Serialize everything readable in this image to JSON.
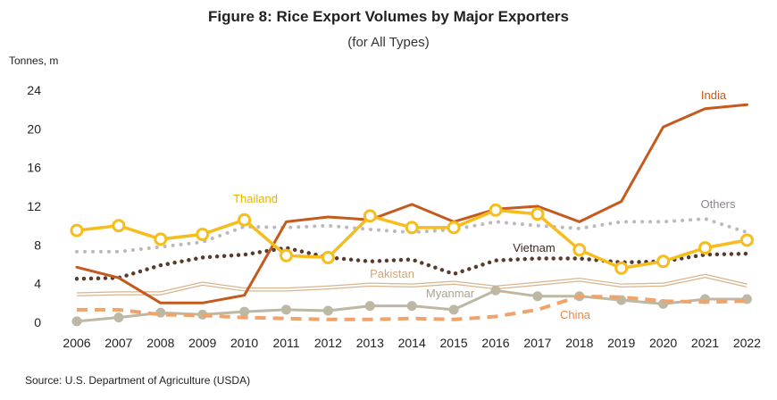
{
  "chart_data": {
    "type": "line",
    "title": "Figure 8: Rice Export Volumes by Major Exporters",
    "subtitle": "(for All Types)",
    "ylabel": "Tonnes, m",
    "source": "Source: U.S. Department of Agriculture (USDA)",
    "ylim": [
      0,
      24
    ],
    "yticks": [
      0,
      4,
      8,
      12,
      16,
      20,
      24
    ],
    "x": [
      "2006",
      "2007",
      "2008",
      "2009",
      "2010",
      "2011",
      "2012",
      "2013",
      "2014",
      "2015",
      "2016",
      "2017",
      "2018",
      "2019",
      "2020",
      "2021",
      "2022"
    ],
    "grid": false,
    "legend": "inline labels",
    "series": [
      {
        "key": "others",
        "name": "Others",
        "color": "#BFB7BE",
        "style": "dotted",
        "values": [
          7.3,
          7.3,
          7.8,
          8.3,
          9.9,
          9.8,
          10.0,
          9.6,
          9.3,
          9.6,
          10.4,
          10.0,
          9.7,
          10.4,
          10.4,
          10.7,
          9.3
        ]
      },
      {
        "key": "pakistan",
        "name": "Pakistan",
        "color": "#D8B48C",
        "style": "double",
        "values": [
          2.9,
          3.0,
          3.0,
          4.0,
          3.4,
          3.4,
          3.6,
          3.9,
          3.8,
          4.1,
          3.6,
          4.0,
          4.4,
          3.8,
          3.9,
          4.8,
          3.8
        ]
      },
      {
        "key": "myanmar",
        "name": "Myanmar",
        "color": "#BDB8A4",
        "style": "solid-markers",
        "values": [
          0.1,
          0.5,
          1.0,
          0.8,
          1.1,
          1.3,
          1.2,
          1.7,
          1.7,
          1.3,
          3.3,
          2.7,
          2.7,
          2.3,
          1.9,
          2.4,
          2.4
        ]
      },
      {
        "key": "china",
        "name": "China",
        "color": "#F0A36A",
        "style": "dashed",
        "values": [
          1.3,
          1.3,
          0.8,
          0.7,
          0.5,
          0.4,
          0.3,
          0.3,
          0.4,
          0.3,
          0.6,
          1.3,
          2.7,
          2.6,
          2.2,
          2.1,
          2.2
        ]
      },
      {
        "key": "vietnam",
        "name": "Vietnam",
        "color": "#5A3A2E",
        "style": "dotted-bold",
        "values": [
          4.5,
          4.6,
          5.9,
          6.7,
          7.0,
          7.7,
          6.7,
          6.3,
          6.5,
          5.0,
          6.4,
          6.6,
          6.6,
          6.2,
          6.3,
          7.0,
          7.1
        ]
      },
      {
        "key": "india",
        "name": "India",
        "color": "#C55A1E",
        "style": "solid",
        "values": [
          5.7,
          4.6,
          2.0,
          2.0,
          2.8,
          10.4,
          10.9,
          10.6,
          12.2,
          10.4,
          11.7,
          12.0,
          10.4,
          12.5,
          20.2,
          22.1,
          22.5
        ]
      },
      {
        "key": "thailand",
        "name": "Thailand",
        "color": "#F6BD1C",
        "style": "solid-markers",
        "values": [
          9.5,
          10.0,
          8.6,
          9.1,
          10.6,
          6.9,
          6.7,
          11.0,
          9.8,
          9.8,
          11.6,
          11.2,
          7.5,
          5.6,
          6.3,
          7.7,
          8.5
        ]
      }
    ]
  }
}
